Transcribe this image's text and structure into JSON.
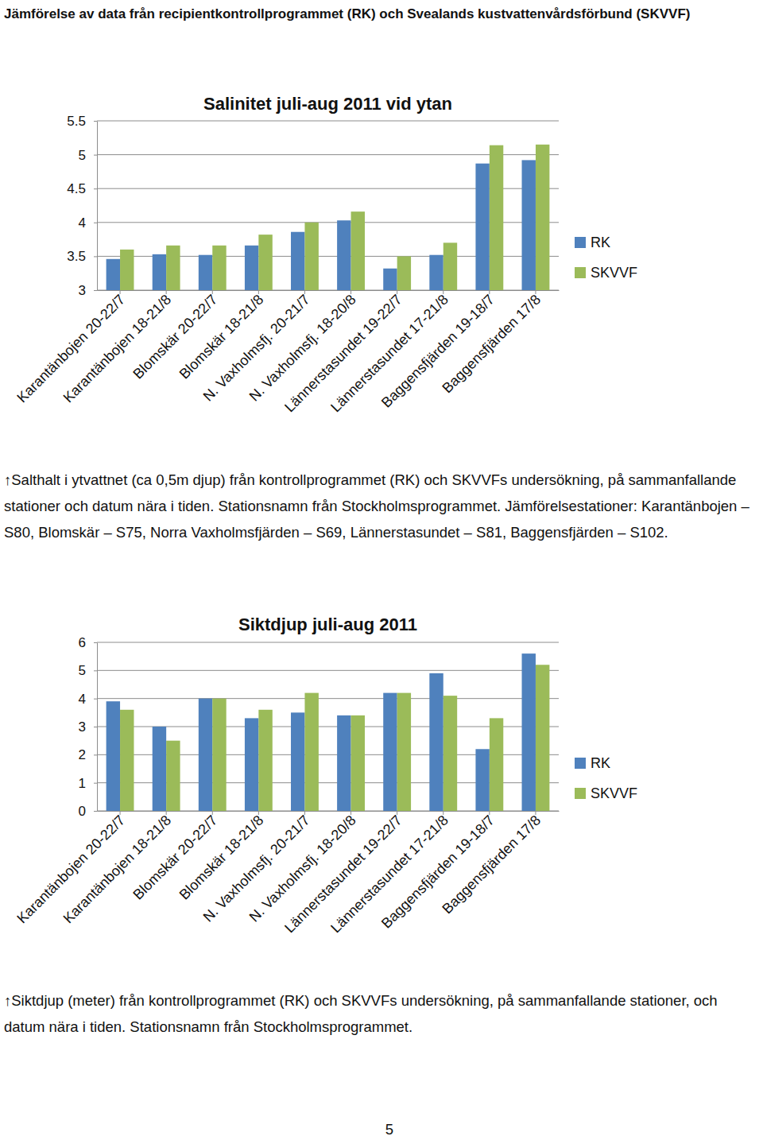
{
  "header": {
    "title": "Jämförelse av data från recipientkontrollprogrammet (RK) och Svealands kustvattenvårdsförbund (SKVVF)"
  },
  "chart_data": [
    {
      "type": "bar",
      "title": "Salinitet juli-aug 2011 vid ytan",
      "categories": [
        "Karantänbojen 20-22/7",
        "Karantänbojen 18-21/8",
        "Blomskär 20-22/7",
        "Blomskär 18-21/8",
        "N. Vaxholmsfj. 20-21/7",
        "N. Vaxholmsfj. 18-20/8",
        "Lännerstasundet 19-22/7",
        "Lännerstasundet 17-21/8",
        "Baggensfjärden 19-18/7",
        "Baggensfjärden 17/8"
      ],
      "series": [
        {
          "name": "RK",
          "color": "#4f81bd",
          "values": [
            3.46,
            3.53,
            3.52,
            3.66,
            3.86,
            4.03,
            3.32,
            3.52,
            4.87,
            4.92
          ]
        },
        {
          "name": "SKVVF",
          "color": "#9bbb59",
          "values": [
            3.6,
            3.66,
            3.66,
            3.82,
            4.0,
            4.16,
            3.5,
            3.7,
            5.14,
            5.15
          ]
        }
      ],
      "ylim": [
        3,
        5.5
      ],
      "yticks": [
        3,
        3.5,
        4,
        4.5,
        5,
        5.5
      ],
      "grid": true,
      "legend": "right"
    },
    {
      "type": "bar",
      "title": "Siktdjup juli-aug 2011",
      "categories": [
        "Karantänbojen 20-22/7",
        "Karantänbojen 18-21/8",
        "Blomskär 20-22/7",
        "Blomskär 18-21/8",
        "N. Vaxholmsfj. 20-21/7",
        "N. Vaxholmsfj. 18-20/8",
        "Lännerstasundet 19-22/7",
        "Lännerstasundet 17-21/8",
        "Baggensfjärden 19-18/7",
        "Baggensfjärden 17/8"
      ],
      "series": [
        {
          "name": "RK",
          "color": "#4f81bd",
          "values": [
            3.9,
            3.0,
            4.0,
            3.3,
            3.5,
            3.4,
            4.2,
            4.9,
            2.2,
            5.6
          ]
        },
        {
          "name": "SKVVF",
          "color": "#9bbb59",
          "values": [
            3.6,
            2.5,
            4.0,
            3.6,
            4.2,
            3.4,
            4.2,
            4.1,
            3.3,
            5.2
          ]
        }
      ],
      "ylim": [
        0,
        6
      ],
      "yticks": [
        0,
        1,
        2,
        3,
        4,
        5,
        6
      ],
      "grid": true,
      "legend": "right"
    }
  ],
  "captions": [
    "↑Salthalt i ytvattnet (ca 0,5m djup) från kontrollprogrammet (RK) och SKVVFs undersökning, på sammanfallande stationer och datum nära i tiden. Stationsnamn från Stockholmsprogrammet. Jämförelsestationer: Karantänbojen – S80, Blomskär – S75, Norra Vaxholmsfjärden – S69, Lännerstasundet – S81, Baggensfjärden – S102.",
    "↑Siktdjup (meter) från kontrollprogrammet (RK) och SKVVFs undersökning, på sammanfallande stationer, och datum nära i tiden. Stationsnamn från Stockholmsprogrammet."
  ],
  "page_number": 5
}
